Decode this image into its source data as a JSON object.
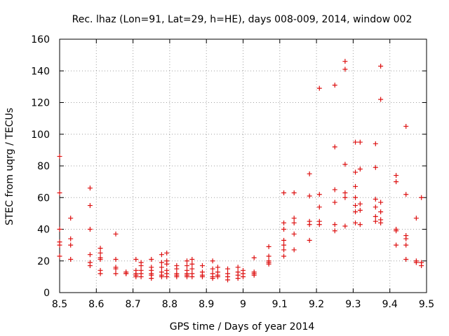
{
  "chart_data": {
    "type": "scatter",
    "title": "Rec. lhaz (Lon=91, Lat=29, h=HE), days 008-009, 2014, window 002",
    "xlabel": "GPS time / Days of year 2014",
    "ylabel": "STEC from uqrg / TECUs",
    "xlim": [
      8.5,
      9.5
    ],
    "ylim": [
      0,
      160
    ],
    "xticks": [
      "8.5",
      "8.6",
      "8.7",
      "8.8",
      "8.9",
      "9",
      "9.1",
      "9.2",
      "9.3",
      "9.4",
      "9.5"
    ],
    "yticks": [
      "0",
      "20",
      "40",
      "60",
      "80",
      "100",
      "120",
      "140",
      "160"
    ],
    "grid": true,
    "marker": "+",
    "color": "#dd1111",
    "points": [
      [
        8.5,
        86
      ],
      [
        8.5,
        63
      ],
      [
        8.5,
        40
      ],
      [
        8.5,
        32
      ],
      [
        8.5,
        30
      ],
      [
        8.5,
        23
      ],
      [
        8.53,
        47
      ],
      [
        8.53,
        34
      ],
      [
        8.53,
        30
      ],
      [
        8.53,
        21
      ],
      [
        8.583,
        66
      ],
      [
        8.583,
        55
      ],
      [
        8.583,
        40
      ],
      [
        8.583,
        24
      ],
      [
        8.583,
        19
      ],
      [
        8.583,
        17
      ],
      [
        8.611,
        28
      ],
      [
        8.611,
        25
      ],
      [
        8.611,
        22
      ],
      [
        8.611,
        21
      ],
      [
        8.611,
        14
      ],
      [
        8.611,
        12
      ],
      [
        8.653,
        37
      ],
      [
        8.653,
        21
      ],
      [
        8.653,
        16
      ],
      [
        8.653,
        15
      ],
      [
        8.653,
        12
      ],
      [
        8.681,
        13
      ],
      [
        8.681,
        12
      ],
      [
        8.681,
        12
      ],
      [
        8.708,
        21
      ],
      [
        8.708,
        14
      ],
      [
        8.708,
        12
      ],
      [
        8.708,
        11
      ],
      [
        8.708,
        10
      ],
      [
        8.722,
        19
      ],
      [
        8.722,
        17
      ],
      [
        8.722,
        14
      ],
      [
        8.722,
        12
      ],
      [
        8.722,
        10
      ],
      [
        8.75,
        21
      ],
      [
        8.75,
        16
      ],
      [
        8.75,
        14
      ],
      [
        8.75,
        12
      ],
      [
        8.75,
        11
      ],
      [
        8.75,
        9
      ],
      [
        8.778,
        24
      ],
      [
        8.778,
        19
      ],
      [
        8.778,
        16
      ],
      [
        8.778,
        13
      ],
      [
        8.778,
        11
      ],
      [
        8.778,
        10
      ],
      [
        8.792,
        25
      ],
      [
        8.792,
        20
      ],
      [
        8.792,
        18
      ],
      [
        8.792,
        14
      ],
      [
        8.792,
        12
      ],
      [
        8.792,
        10
      ],
      [
        8.819,
        17
      ],
      [
        8.819,
        15
      ],
      [
        8.819,
        12
      ],
      [
        8.819,
        11
      ],
      [
        8.819,
        10
      ],
      [
        8.847,
        20
      ],
      [
        8.847,
        17
      ],
      [
        8.847,
        14
      ],
      [
        8.847,
        12
      ],
      [
        8.847,
        11
      ],
      [
        8.847,
        10
      ],
      [
        8.861,
        21
      ],
      [
        8.861,
        18
      ],
      [
        8.861,
        15
      ],
      [
        8.861,
        12
      ],
      [
        8.861,
        10
      ],
      [
        8.889,
        17
      ],
      [
        8.889,
        13
      ],
      [
        8.889,
        11
      ],
      [
        8.889,
        10
      ],
      [
        8.917,
        20
      ],
      [
        8.917,
        15
      ],
      [
        8.917,
        12
      ],
      [
        8.917,
        10
      ],
      [
        8.917,
        9
      ],
      [
        8.931,
        16
      ],
      [
        8.931,
        13
      ],
      [
        8.931,
        11
      ],
      [
        8.931,
        10
      ],
      [
        8.958,
        15
      ],
      [
        8.958,
        12
      ],
      [
        8.958,
        10
      ],
      [
        8.958,
        8
      ],
      [
        8.986,
        16
      ],
      [
        8.986,
        13
      ],
      [
        8.986,
        11
      ],
      [
        8.986,
        9
      ],
      [
        9.0,
        14
      ],
      [
        9.0,
        12
      ],
      [
        9.0,
        10
      ],
      [
        9.03,
        22
      ],
      [
        9.03,
        13
      ],
      [
        9.03,
        12
      ],
      [
        9.03,
        11
      ],
      [
        9.07,
        29
      ],
      [
        9.07,
        23
      ],
      [
        9.07,
        20
      ],
      [
        9.07,
        19
      ],
      [
        9.07,
        18
      ],
      [
        9.111,
        63
      ],
      [
        9.111,
        44
      ],
      [
        9.111,
        40
      ],
      [
        9.111,
        33
      ],
      [
        9.111,
        30
      ],
      [
        9.111,
        27
      ],
      [
        9.111,
        23
      ],
      [
        9.139,
        63
      ],
      [
        9.139,
        47
      ],
      [
        9.139,
        44
      ],
      [
        9.139,
        37
      ],
      [
        9.139,
        27
      ],
      [
        9.181,
        75
      ],
      [
        9.181,
        61
      ],
      [
        9.181,
        45
      ],
      [
        9.181,
        43
      ],
      [
        9.181,
        33
      ],
      [
        9.208,
        129
      ],
      [
        9.208,
        62
      ],
      [
        9.208,
        54
      ],
      [
        9.208,
        45
      ],
      [
        9.208,
        43
      ],
      [
        9.25,
        131
      ],
      [
        9.25,
        92
      ],
      [
        9.25,
        65
      ],
      [
        9.25,
        57
      ],
      [
        9.25,
        43
      ],
      [
        9.25,
        39
      ],
      [
        9.278,
        146
      ],
      [
        9.278,
        141
      ],
      [
        9.278,
        81
      ],
      [
        9.278,
        63
      ],
      [
        9.278,
        60
      ],
      [
        9.278,
        42
      ],
      [
        9.306,
        95
      ],
      [
        9.306,
        76
      ],
      [
        9.306,
        67
      ],
      [
        9.306,
        60
      ],
      [
        9.306,
        55
      ],
      [
        9.306,
        51
      ],
      [
        9.306,
        44
      ],
      [
        9.319,
        95
      ],
      [
        9.319,
        78
      ],
      [
        9.319,
        56
      ],
      [
        9.319,
        52
      ],
      [
        9.319,
        43
      ],
      [
        9.361,
        94
      ],
      [
        9.361,
        79
      ],
      [
        9.361,
        59
      ],
      [
        9.361,
        54
      ],
      [
        9.361,
        48
      ],
      [
        9.361,
        45
      ],
      [
        9.375,
        143
      ],
      [
        9.375,
        122
      ],
      [
        9.375,
        57
      ],
      [
        9.375,
        51
      ],
      [
        9.375,
        46
      ],
      [
        9.375,
        44
      ],
      [
        9.417,
        74
      ],
      [
        9.417,
        70
      ],
      [
        9.417,
        40
      ],
      [
        9.417,
        39
      ],
      [
        9.417,
        30
      ],
      [
        9.444,
        105
      ],
      [
        9.444,
        62
      ],
      [
        9.444,
        36
      ],
      [
        9.444,
        34
      ],
      [
        9.444,
        30
      ],
      [
        9.444,
        21
      ],
      [
        9.472,
        47
      ],
      [
        9.472,
        20
      ],
      [
        9.472,
        19
      ],
      [
        9.486,
        60
      ],
      [
        9.486,
        19
      ],
      [
        9.486,
        17
      ]
    ]
  }
}
